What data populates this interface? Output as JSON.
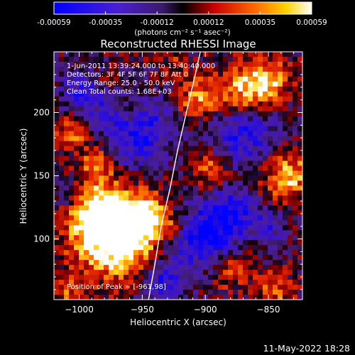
{
  "colorbar": {
    "ticks": [
      "-0.00059",
      "-0.00035",
      "-0.00012",
      "0.00012",
      "0.00035",
      "0.00059"
    ],
    "unit_label": "(photons cm⁻² s⁻¹ asec⁻²)"
  },
  "chart_data": {
    "type": "heatmap",
    "title": "Reconstructed RHESSI Image",
    "xlabel": "Heliocentric X (arcsec)",
    "ylabel": "Heliocentric Y (arcsec)",
    "xlim": [
      -1020,
      -823
    ],
    "ylim": [
      52,
      248
    ],
    "xticks": [
      -1000,
      -950,
      -900,
      -850
    ],
    "xtick_labels": [
      "−1000",
      "−950",
      "−900",
      "−850"
    ],
    "yticks": [
      100,
      150,
      200
    ],
    "ytick_labels": [
      "100",
      "150",
      "200"
    ],
    "value_range": [
      -0.00059,
      0.00059
    ],
    "colormap": "rhessi-diverging (blue-purple-black-red-orange-yellow-white)",
    "annotations": [
      "1-Jun-2011 13:39:24.000 to 13:40:40.000",
      "Detectors: 3F 4F 5F 6F 7F 8F Att 0",
      "Energy Range: 25.0 - 50.0 keV",
      "Clean    Total counts: 1.68E+03"
    ],
    "peak_label": "Position of Peak = [-961,98]",
    "peak_position": [
      -961,
      98
    ],
    "limb_curve": [
      [
        -945,
        52
      ],
      [
        -940,
        80
      ],
      [
        -935,
        110
      ],
      [
        -928,
        140
      ],
      [
        -922,
        170
      ],
      [
        -915,
        200
      ],
      [
        -908,
        230
      ],
      [
        -904,
        248
      ]
    ]
  },
  "footer": {
    "timestamp": "11-May-2022 18:28"
  }
}
